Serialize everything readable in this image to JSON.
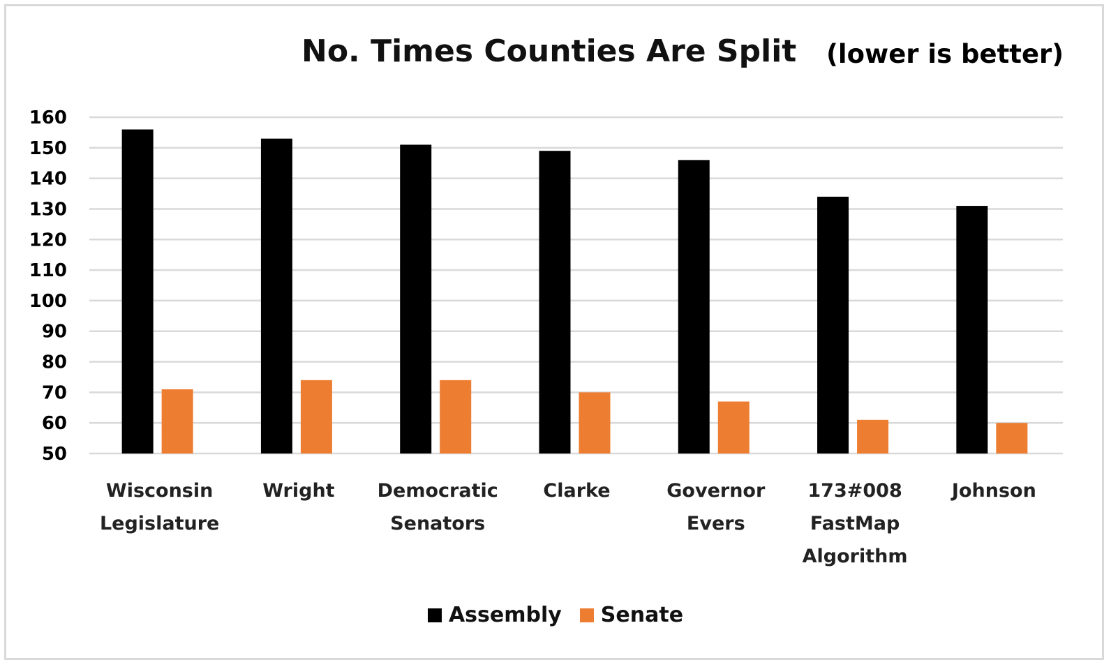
{
  "chart_data": {
    "type": "bar",
    "title": "No. Times Counties Are Split",
    "subtitle": "(lower is better)",
    "categories": [
      [
        "Wisconsin",
        "Legislature"
      ],
      [
        "Wright"
      ],
      [
        "Democratic",
        "Senators"
      ],
      [
        "Clarke"
      ],
      [
        "Governor",
        "Evers"
      ],
      [
        "173#008",
        "FastMap",
        "Algorithm"
      ],
      [
        "Johnson"
      ]
    ],
    "series": [
      {
        "name": "Assembly",
        "color": "#000000",
        "values": [
          156,
          153,
          151,
          149,
          146,
          134,
          131
        ]
      },
      {
        "name": "Senate",
        "color": "#ED7D31",
        "values": [
          71,
          74,
          74,
          70,
          67,
          61,
          60
        ]
      }
    ],
    "ylim": [
      50,
      160
    ],
    "yticks": [
      160,
      150,
      140,
      130,
      120,
      110,
      100,
      90,
      80,
      70,
      60,
      50
    ],
    "grid": true,
    "legend_position": "bottom"
  }
}
